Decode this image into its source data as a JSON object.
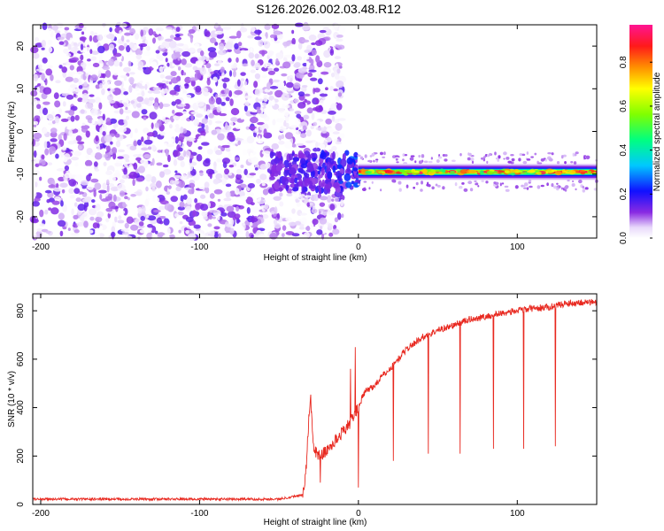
{
  "title": "S126.2026.002.03.48.R12",
  "chart_data": [
    {
      "type": "heatmap",
      "xlabel": "Height of straight line (km)",
      "ylabel": "Frequency (Hz)",
      "xlim": [
        -205,
        150
      ],
      "ylim": [
        -25,
        25
      ],
      "xticks": [
        -200,
        -100,
        0,
        100
      ],
      "yticks": [
        -20,
        -10,
        0,
        10,
        20
      ],
      "colorbar": {
        "label": "Normalized spectral amplitude",
        "range": [
          0,
          0.97
        ],
        "ticks": [
          0.0,
          0.2,
          0.4,
          0.6,
          0.8
        ]
      },
      "features": {
        "noise_region_x": [
          -205,
          -10
        ],
        "emerging_signal_x": [
          -55,
          0
        ],
        "signal_line_x": [
          0,
          150
        ],
        "signal_frequency_hz": -9.5,
        "signal_peak_amplitude": 0.95
      },
      "grid": false
    },
    {
      "type": "line",
      "xlabel": "Height of straight line (km)",
      "ylabel": "SNR (10 * v/v)",
      "xlim": [
        -205,
        150
      ],
      "ylim": [
        0,
        870
      ],
      "xticks": [
        -200,
        -100,
        0,
        100
      ],
      "yticks": [
        0,
        200,
        400,
        600,
        800
      ],
      "color": "#e8281f",
      "series": [
        {
          "name": "",
          "x": [
            -205,
            -150,
            -100,
            -50,
            -35,
            -33,
            -31,
            -30,
            -29,
            -28,
            -25,
            -20,
            -15,
            -10,
            -5,
            -2,
            0,
            1,
            3,
            5,
            10,
            15,
            20,
            25,
            30,
            40,
            50,
            60,
            70,
            80,
            90,
            100,
            110,
            120,
            130,
            140,
            150
          ],
          "y": [
            22,
            22,
            22,
            22,
            40,
            140,
            380,
            430,
            300,
            230,
            200,
            220,
            260,
            300,
            340,
            380,
            400,
            420,
            450,
            470,
            490,
            530,
            560,
            600,
            640,
            690,
            720,
            740,
            765,
            775,
            790,
            800,
            810,
            815,
            830,
            835,
            835
          ]
        }
      ],
      "spikes": [
        {
          "x": -24,
          "y": 90
        },
        {
          "x": -5,
          "y": 560
        },
        {
          "x": -2,
          "y": 650
        },
        {
          "x": 0,
          "y": 70
        },
        {
          "x": 22,
          "y": 180
        },
        {
          "x": 44,
          "y": 210
        },
        {
          "x": 64,
          "y": 210
        },
        {
          "x": 85,
          "y": 230
        },
        {
          "x": 104,
          "y": 230
        },
        {
          "x": 124,
          "y": 240
        }
      ],
      "grid": false
    }
  ]
}
